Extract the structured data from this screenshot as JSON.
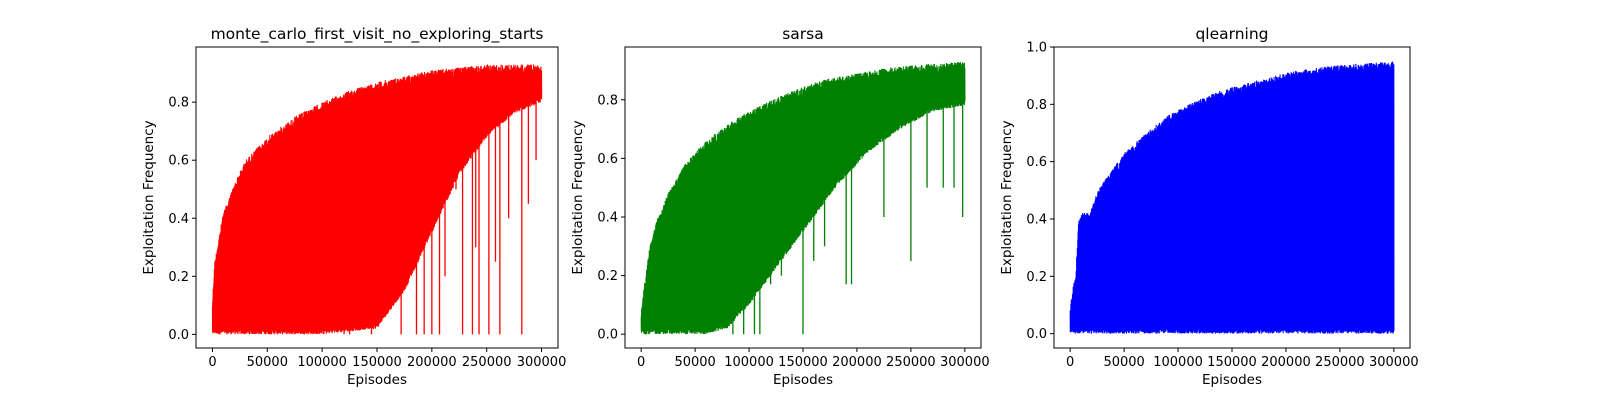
{
  "chart_data": [
    {
      "type": "line",
      "title": "monte_carlo_first_visit_no_exploring_starts",
      "xlabel": "Episodes",
      "ylabel": "Exploitation Frequency",
      "color": "#ff0000",
      "xlim": [
        -15000,
        315000
      ],
      "ylim": [
        -0.047,
        0.99
      ],
      "xticks": [
        0,
        50000,
        100000,
        150000,
        200000,
        250000,
        300000
      ],
      "xtick_labels": [
        "0",
        "50000",
        "100000",
        "150000",
        "200000",
        "250000",
        "300000"
      ],
      "yticks": [
        0.0,
        0.2,
        0.4,
        0.6,
        0.8
      ],
      "ytick_labels": [
        "0.0",
        "0.2",
        "0.4",
        "0.6",
        "0.8"
      ],
      "series": [
        {
          "upper_envelope": [
            [
              0,
              0.12
            ],
            [
              2000,
              0.25
            ],
            [
              5000,
              0.32
            ],
            [
              10000,
              0.42
            ],
            [
              20000,
              0.52
            ],
            [
              30000,
              0.6
            ],
            [
              50000,
              0.68
            ],
            [
              75000,
              0.75
            ],
            [
              100000,
              0.8
            ],
            [
              125000,
              0.84
            ],
            [
              150000,
              0.87
            ],
            [
              175000,
              0.89
            ],
            [
              200000,
              0.91
            ],
            [
              225000,
              0.92
            ],
            [
              250000,
              0.93
            ],
            [
              275000,
              0.93
            ],
            [
              300000,
              0.93
            ]
          ],
          "dense_lower_band": [
            [
              0,
              0.0
            ],
            [
              100000,
              0.0
            ],
            [
              150000,
              0.02
            ],
            [
              175000,
              0.15
            ],
            [
              200000,
              0.35
            ],
            [
              225000,
              0.55
            ],
            [
              250000,
              0.68
            ],
            [
              275000,
              0.76
            ],
            [
              300000,
              0.8
            ]
          ],
          "drops": [
            [
              120000,
              0.0
            ],
            [
              125000,
              0.0
            ],
            [
              145000,
              0.0
            ],
            [
              172000,
              0.0
            ],
            [
              186000,
              0.0
            ],
            [
              193000,
              0.0
            ],
            [
              200000,
              0.0
            ],
            [
              207000,
              0.0
            ],
            [
              228000,
              0.0
            ],
            [
              237000,
              0.0
            ],
            [
              243000,
              0.0
            ],
            [
              252000,
              0.0
            ],
            [
              262000,
              0.0
            ],
            [
              282000,
              0.0
            ],
            [
              150000,
              0.25
            ],
            [
              165000,
              0.3
            ],
            [
              212000,
              0.2
            ],
            [
              222000,
              0.5
            ],
            [
              240000,
              0.3
            ],
            [
              258000,
              0.25
            ],
            [
              270000,
              0.4
            ],
            [
              288000,
              0.45
            ],
            [
              295000,
              0.6
            ]
          ]
        }
      ]
    },
    {
      "type": "line",
      "title": "sarsa",
      "xlabel": "Episodes",
      "ylabel": "Exploitation Frequency",
      "color": "#008000",
      "xlim": [
        -15000,
        315000
      ],
      "ylim": [
        -0.047,
        0.98
      ],
      "xticks": [
        0,
        50000,
        100000,
        150000,
        200000,
        250000,
        300000
      ],
      "xtick_labels": [
        "0",
        "50000",
        "100000",
        "150000",
        "200000",
        "250000",
        "300000"
      ],
      "yticks": [
        0.0,
        0.2,
        0.4,
        0.6,
        0.8
      ],
      "ytick_labels": [
        "0.0",
        "0.2",
        "0.4",
        "0.6",
        "0.8"
      ],
      "series": [
        {
          "upper_envelope": [
            [
              0,
              0.08
            ],
            [
              3000,
              0.17
            ],
            [
              8000,
              0.3
            ],
            [
              15000,
              0.4
            ],
            [
              25000,
              0.48
            ],
            [
              40000,
              0.58
            ],
            [
              60000,
              0.66
            ],
            [
              85000,
              0.73
            ],
            [
              110000,
              0.78
            ],
            [
              140000,
              0.83
            ],
            [
              170000,
              0.87
            ],
            [
              200000,
              0.89
            ],
            [
              230000,
              0.91
            ],
            [
              260000,
              0.92
            ],
            [
              300000,
              0.93
            ]
          ],
          "dense_lower_band": [
            [
              0,
              0.0
            ],
            [
              60000,
              0.0
            ],
            [
              80000,
              0.02
            ],
            [
              100000,
              0.1
            ],
            [
              120000,
              0.2
            ],
            [
              150000,
              0.35
            ],
            [
              180000,
              0.5
            ],
            [
              210000,
              0.62
            ],
            [
              240000,
              0.7
            ],
            [
              270000,
              0.76
            ],
            [
              300000,
              0.78
            ]
          ],
          "drops": [
            [
              85000,
              0.0
            ],
            [
              95000,
              0.0
            ],
            [
              105000,
              0.0
            ],
            [
              110000,
              0.0
            ],
            [
              150000,
              0.0
            ],
            [
              100000,
              0.17
            ],
            [
              120000,
              0.17
            ],
            [
              130000,
              0.2
            ],
            [
              160000,
              0.25
            ],
            [
              170000,
              0.3
            ],
            [
              190000,
              0.17
            ],
            [
              195000,
              0.17
            ],
            [
              225000,
              0.4
            ],
            [
              250000,
              0.25
            ],
            [
              265000,
              0.5
            ],
            [
              280000,
              0.5
            ],
            [
              290000,
              0.5
            ],
            [
              298000,
              0.4
            ]
          ]
        }
      ]
    },
    {
      "type": "line",
      "title": "qlearning",
      "xlabel": "Episodes",
      "ylabel": "Exploitation Frequency",
      "color": "#0000ff",
      "xlim": [
        -15000,
        315000
      ],
      "ylim": [
        -0.05,
        1.0
      ],
      "xticks": [
        0,
        50000,
        100000,
        150000,
        200000,
        250000,
        300000
      ],
      "xtick_labels": [
        "0",
        "50000",
        "100000",
        "150000",
        "200000",
        "250000",
        "300000"
      ],
      "yticks": [
        0.0,
        0.2,
        0.4,
        0.6,
        0.8,
        1.0
      ],
      "ytick_labels": [
        "0.0",
        "0.2",
        "0.4",
        "0.6",
        "0.8",
        "1.0"
      ],
      "series": [
        {
          "upper_envelope": [
            [
              0,
              0.1
            ],
            [
              3000,
              0.17
            ],
            [
              5000,
              0.2
            ],
            [
              8000,
              0.4
            ],
            [
              12000,
              0.43
            ],
            [
              18000,
              0.42
            ],
            [
              25000,
              0.5
            ],
            [
              35000,
              0.55
            ],
            [
              50000,
              0.63
            ],
            [
              70000,
              0.7
            ],
            [
              90000,
              0.76
            ],
            [
              110000,
              0.8
            ],
            [
              140000,
              0.85
            ],
            [
              170000,
              0.88
            ],
            [
              200000,
              0.91
            ],
            [
              230000,
              0.93
            ],
            [
              260000,
              0.94
            ],
            [
              300000,
              0.95
            ]
          ],
          "dense_lower_band": [
            [
              0,
              0.0
            ],
            [
              300000,
              0.0
            ]
          ],
          "drops": []
        }
      ]
    }
  ]
}
